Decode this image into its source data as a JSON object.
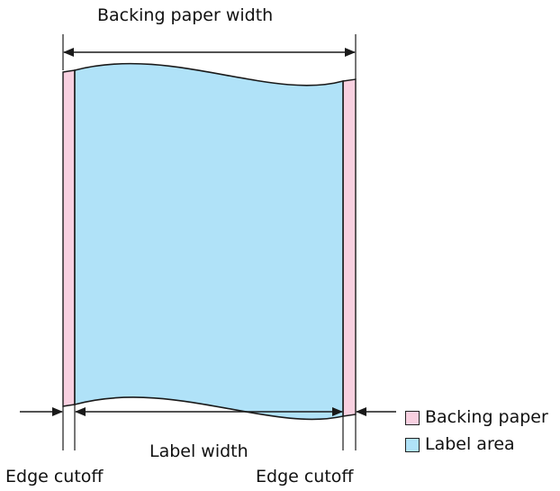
{
  "labels": {
    "backing_paper_width": "Backing paper width",
    "label_width": "Label width",
    "edge_cutoff_left": "Edge cutoff",
    "edge_cutoff_right": "Edge cutoff"
  },
  "legend": {
    "backing_paper": "Backing paper",
    "label_area": "Label area"
  },
  "colors": {
    "backing_paper": "#f8d0e0",
    "label_area": "#b0e2f8",
    "stroke": "#1a1a1a"
  }
}
